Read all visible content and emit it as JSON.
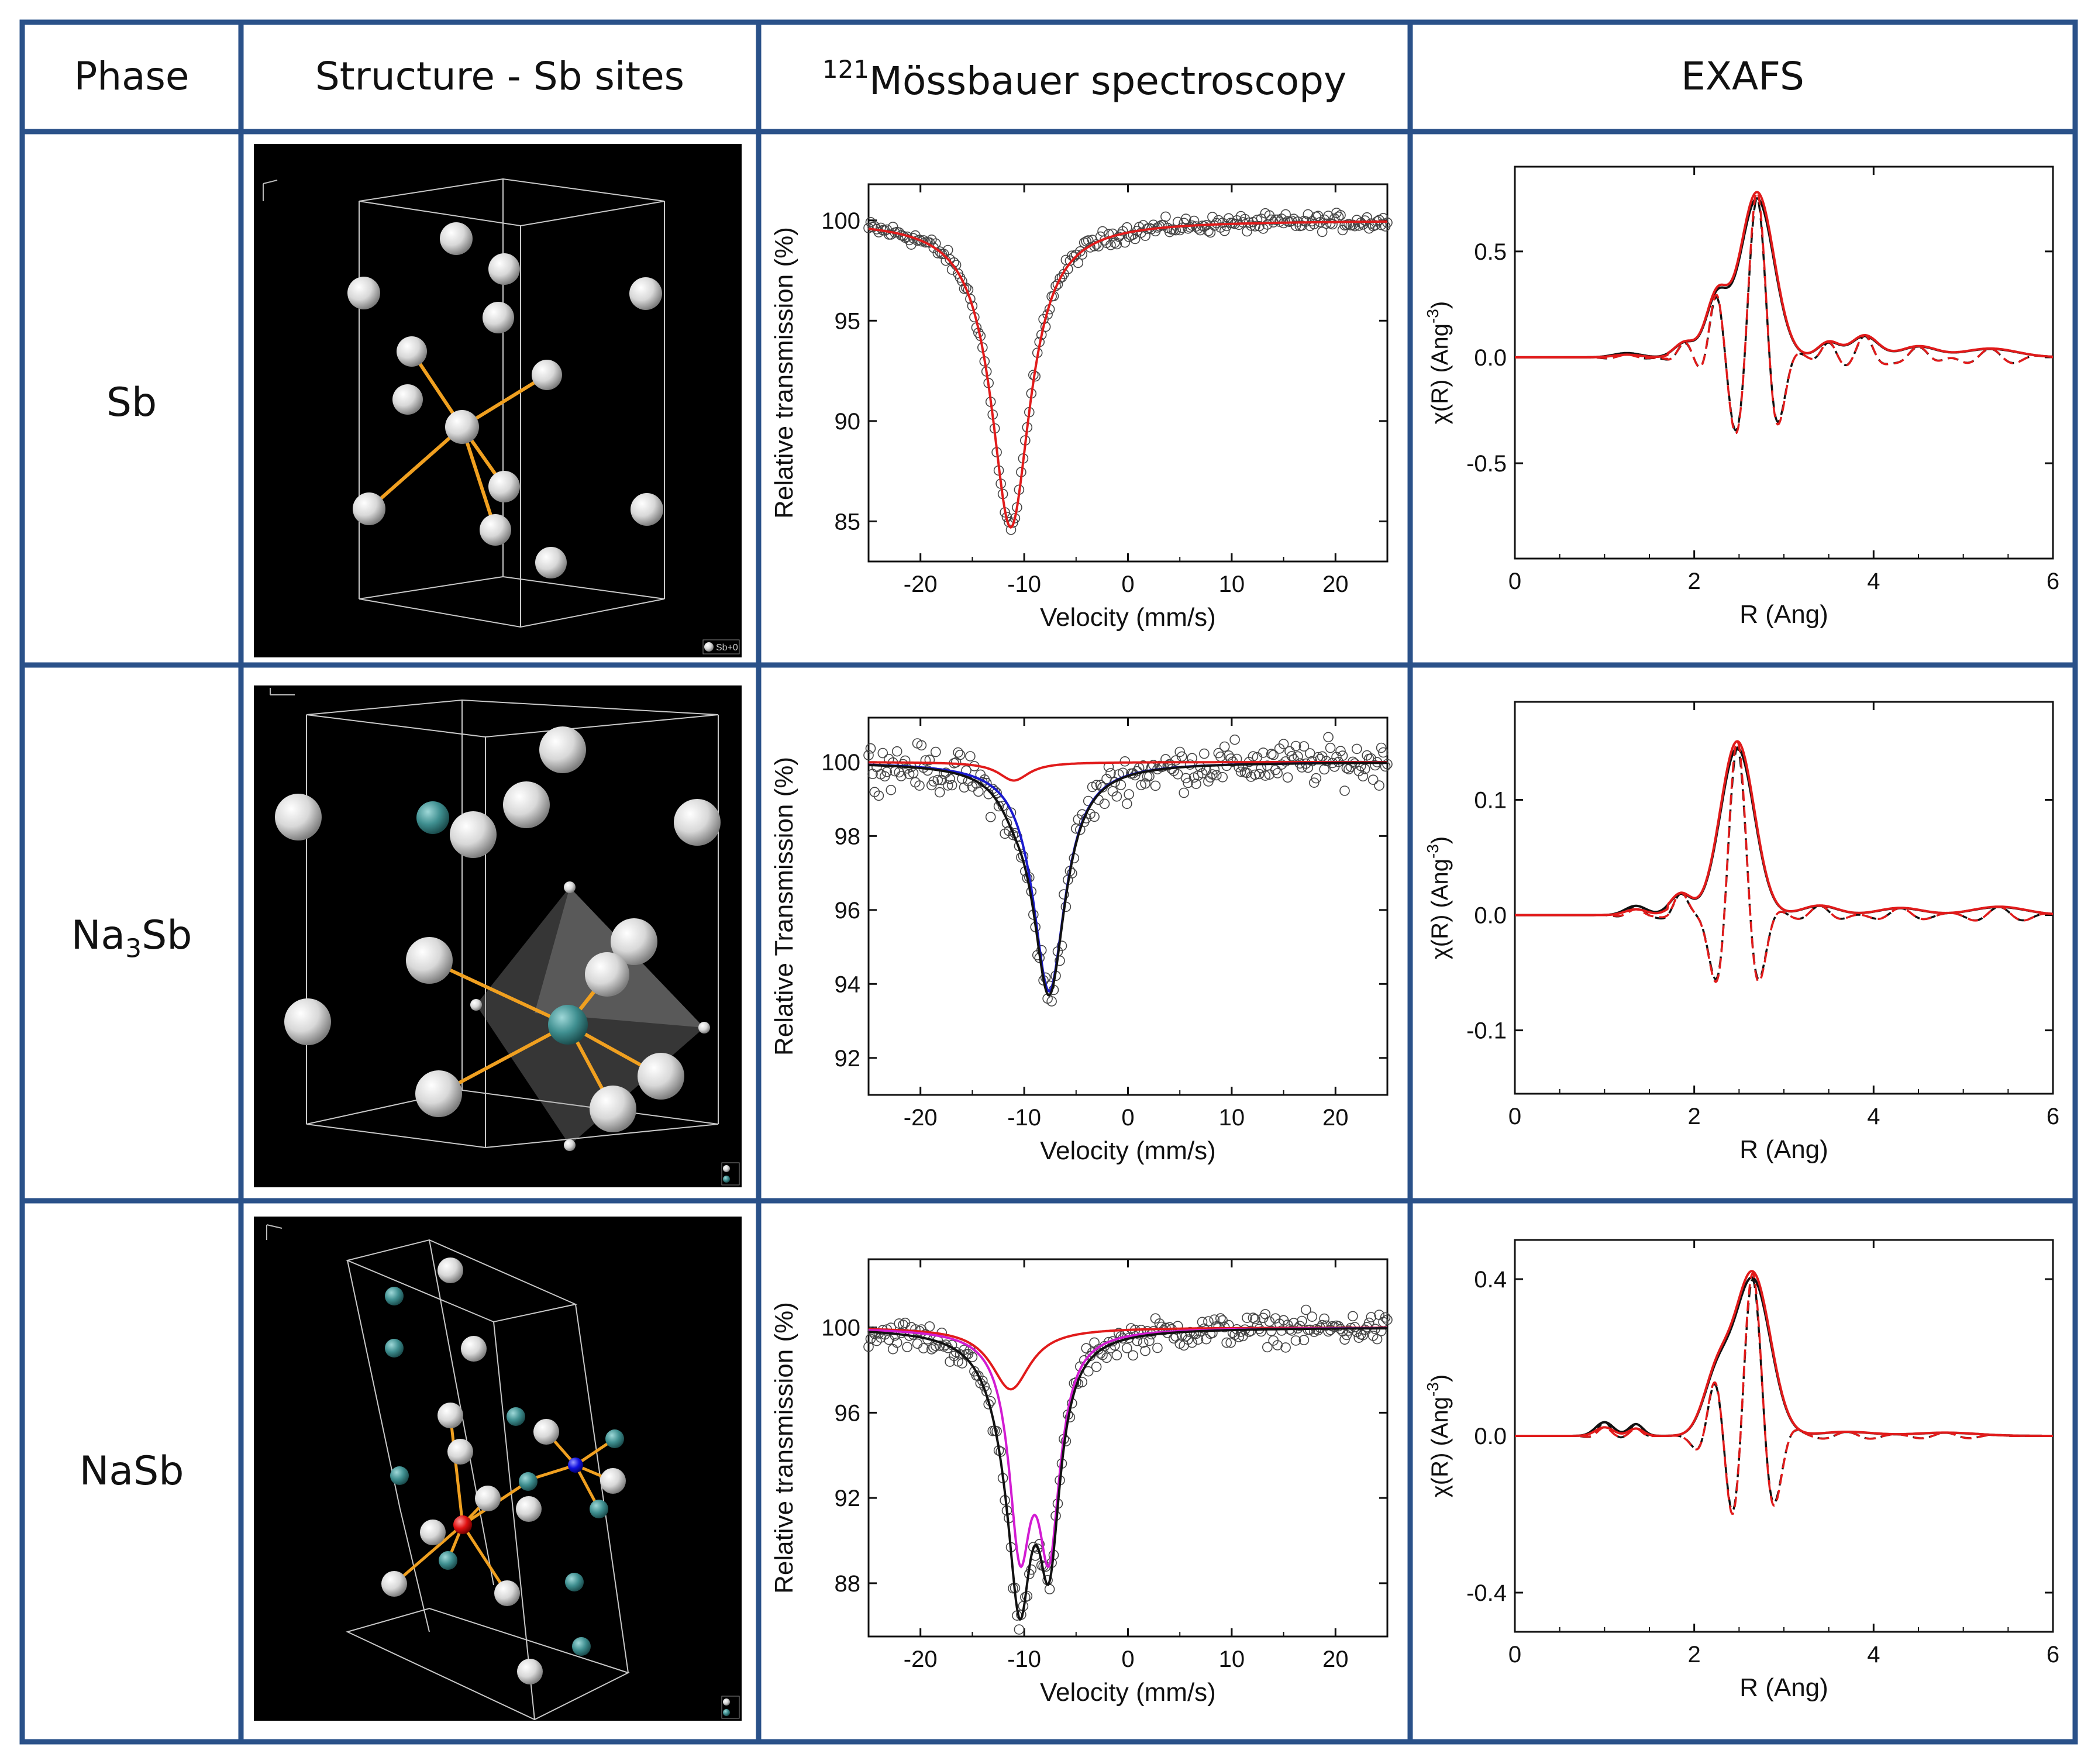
{
  "table": {
    "headers": [
      "Phase",
      "Structure - Sb sites",
      "Mössbauer spectroscopy",
      "EXAFS"
    ],
    "mossbauer_header_prefix": "121",
    "phases": [
      "Sb",
      "Na",
      "3",
      "Sb",
      "NaSb"
    ],
    "border_color": "#2a5189"
  },
  "crystals": [
    {
      "legend": "Sb+0"
    },
    {
      "legend": ""
    },
    {
      "legend": ""
    }
  ],
  "chart_data": [
    {
      "type": "scatter",
      "panel": "Sb Mössbauer",
      "xlabel": "Velocity (mm/s)",
      "ylabel": "Relative transmission (%)",
      "xlim": [
        -25,
        25
      ],
      "ylim": [
        83,
        101.8
      ],
      "xticks": [
        -20,
        -10,
        0,
        10,
        20
      ],
      "yticks": [
        85,
        90,
        95,
        100
      ],
      "data_points": "open circles, scattered about the fit",
      "series": [
        {
          "color": "#e11b1b",
          "kind": "lorentzian",
          "center": -11.3,
          "depth": 15.3,
          "hwhm": 2.3
        }
      ],
      "total_color": null
    },
    {
      "type": "scatter",
      "panel": "Na3Sb Mössbauer",
      "xlabel": "Velocity (mm/s)",
      "ylabel": "Relative Transmission (%)",
      "xlim": [
        -25,
        25
      ],
      "ylim": [
        91,
        101.2
      ],
      "xticks": [
        -20,
        -10,
        0,
        10,
        20
      ],
      "yticks": [
        92,
        94,
        96,
        98,
        100
      ],
      "data_points": "open circles, scattered about the fit",
      "series": [
        {
          "color": "#e11b1b",
          "kind": "lorentzian",
          "center": -11.0,
          "depth": 0.5,
          "hwhm": 1.8
        },
        {
          "color": "#1a1acf",
          "kind": "lorentzian",
          "center": -7.6,
          "depth": 6.2,
          "hwhm": 1.9
        }
      ],
      "total_color": "#111111"
    },
    {
      "type": "scatter",
      "panel": "NaSb Mössbauer",
      "xlabel": "Velocity (mm/s)",
      "ylabel": "Relative transmission (%)",
      "xlim": [
        -25,
        25
      ],
      "ylim": [
        85.5,
        103.2
      ],
      "xticks": [
        -20,
        -10,
        0,
        10,
        20
      ],
      "yticks": [
        88,
        92,
        96,
        100
      ],
      "data_points": "open circles, scattered about the fit",
      "series": [
        {
          "color": "#e11b1b",
          "kind": "lorentzian",
          "center": -11.3,
          "depth": 2.9,
          "hwhm": 2.3
        },
        {
          "color": "#d21bd2",
          "kind": "doublet",
          "centers": [
            -10.4,
            -7.6
          ],
          "depth": 9.5,
          "hwhm": 1.3
        }
      ],
      "total_color": "#111111"
    },
    {
      "type": "line",
      "panel": "Sb EXAFS",
      "xlabel": "R (Ang)",
      "ylabel": "χ(R) (Ang-3)",
      "xlim": [
        0,
        6
      ],
      "ylim": [
        -0.95,
        0.9
      ],
      "xticks": [
        0,
        2,
        4,
        6
      ],
      "yticks": [
        -0.5,
        0.0,
        0.5
      ],
      "ytick_labels": [
        "-0.5",
        "0.0",
        "0.5"
      ],
      "peaks": [
        {
          "r": 2.7,
          "amp": 0.75,
          "sigma": 0.19,
          "freq": 5.6
        },
        {
          "r": 2.25,
          "amp": 0.27,
          "sigma": 0.12,
          "freq": 5.6
        },
        {
          "r": 1.9,
          "amp": 0.07,
          "sigma": 0.12,
          "freq": 5.6
        },
        {
          "r": 1.25,
          "amp": 0.02,
          "sigma": 0.15,
          "freq": 5.6
        },
        {
          "r": 3.5,
          "amp": 0.07,
          "sigma": 0.12,
          "freq": 5.6
        },
        {
          "r": 3.9,
          "amp": 0.1,
          "sigma": 0.15,
          "freq": 5.6
        },
        {
          "r": 4.5,
          "amp": 0.05,
          "sigma": 0.2,
          "freq": 5.6
        },
        {
          "r": 5.3,
          "amp": 0.04,
          "sigma": 0.3,
          "freq": 5.6
        }
      ],
      "series": [
        {
          "name": "",
          "role": "magnitude",
          "color": "#111111",
          "dashed": false
        },
        {
          "name": "",
          "role": "real part",
          "color": "#111111",
          "dashed": true
        },
        {
          "name": "",
          "role": "fit magnitude",
          "color": "#e11b1b",
          "dashed": false
        },
        {
          "name": "",
          "role": "fit real part",
          "color": "#e11b1b",
          "dashed": true
        }
      ]
    },
    {
      "type": "line",
      "panel": "Na3Sb EXAFS",
      "xlabel": "R (Ang)",
      "ylabel": "χ(R) (Ang-3)",
      "xlim": [
        0,
        6
      ],
      "ylim": [
        -0.155,
        0.185
      ],
      "xticks": [
        0,
        2,
        4,
        6
      ],
      "yticks": [
        -0.1,
        0.0,
        0.1
      ],
      "ytick_labels": [
        "-0.1",
        "0.0",
        "0.1"
      ],
      "peaks": [
        {
          "r": 2.48,
          "amp": 0.145,
          "sigma": 0.19,
          "freq": 5.4
        },
        {
          "r": 1.85,
          "amp": 0.018,
          "sigma": 0.12,
          "freq": 5.4
        },
        {
          "r": 1.35,
          "amp": 0.008,
          "sigma": 0.12,
          "freq": 5.4
        },
        {
          "r": 3.4,
          "amp": 0.008,
          "sigma": 0.2,
          "freq": 5.4
        },
        {
          "r": 4.3,
          "amp": 0.006,
          "sigma": 0.25,
          "freq": 5.4
        },
        {
          "r": 5.4,
          "amp": 0.007,
          "sigma": 0.3,
          "freq": 5.4
        }
      ],
      "series": [
        {
          "name": "",
          "role": "magnitude",
          "color": "#111111",
          "dashed": false
        },
        {
          "name": "",
          "role": "real part",
          "color": "#111111",
          "dashed": true
        },
        {
          "name": "",
          "role": "fit magnitude",
          "color": "#e11b1b",
          "dashed": false
        },
        {
          "name": "",
          "role": "fit real part",
          "color": "#e11b1b",
          "dashed": true
        }
      ]
    },
    {
      "type": "line",
      "panel": "NaSb EXAFS",
      "xlabel": "R (Ang)",
      "ylabel": "χ(R) (Ang-3)",
      "xlim": [
        0,
        6
      ],
      "ylim": [
        -0.5,
        0.5
      ],
      "xticks": [
        0,
        2,
        4,
        6
      ],
      "yticks": [
        -0.4,
        0.0,
        0.4
      ],
      "ytick_labels": [
        "-0.4",
        "0.0",
        "0.4"
      ],
      "peaks": [
        {
          "r": 2.65,
          "amp": 0.4,
          "sigma": 0.2,
          "freq": 5.5
        },
        {
          "r": 2.25,
          "amp": 0.14,
          "sigma": 0.15,
          "freq": 5.5
        },
        {
          "r": 1.0,
          "amp": 0.035,
          "sigma": 0.1,
          "freq": 5.5
        },
        {
          "r": 1.35,
          "amp": 0.03,
          "sigma": 0.08,
          "freq": 5.5
        },
        {
          "r": 3.7,
          "amp": 0.01,
          "sigma": 0.3,
          "freq": 5.5
        },
        {
          "r": 4.8,
          "amp": 0.008,
          "sigma": 0.35,
          "freq": 5.5
        }
      ],
      "series": [
        {
          "name": "",
          "role": "magnitude",
          "color": "#111111",
          "dashed": false
        },
        {
          "name": "",
          "role": "real part",
          "color": "#111111",
          "dashed": true
        },
        {
          "name": "",
          "role": "fit magnitude",
          "color": "#e11b1b",
          "dashed": false
        },
        {
          "name": "",
          "role": "fit real part",
          "color": "#e11b1b",
          "dashed": true
        }
      ]
    }
  ]
}
